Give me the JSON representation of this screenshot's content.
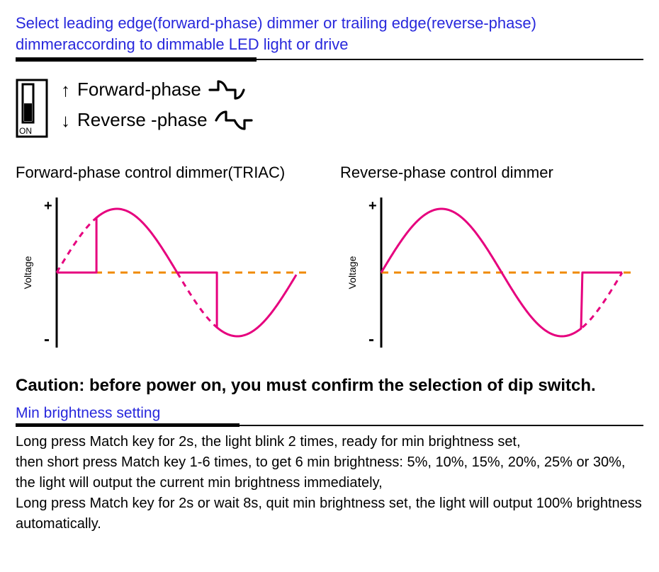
{
  "header": {
    "title_line1": "Select leading edge(forward-phase) dimmer or trailing edge(reverse-phase)",
    "title_line2": "dimmeraccording to dimmable LED light or drive",
    "title_color": "#2828dc",
    "underline_thick_width": 340,
    "underline_color": "#000000"
  },
  "selector": {
    "dip": {
      "on_label": "ON",
      "outline_color": "#000000",
      "slider_fill": "#000000"
    },
    "rows": [
      {
        "arrow": "↑",
        "label": "Forward-phase",
        "wave_type": "forward"
      },
      {
        "arrow": "↓",
        "label": "Reverse -phase",
        "wave_type": "reverse"
      }
    ],
    "label_fontsize": 26,
    "icon_stroke": "#000000",
    "icon_stroke_width": 3.2
  },
  "charts": {
    "axis_label": "Voltage",
    "axis_label_fontsize": 14,
    "plus_label": "+",
    "minus_label": "-",
    "axis_color": "#000000",
    "sine_color": "#e6007e",
    "sine_dash": "8 7",
    "sine_width": 3,
    "zero_line_color": "#f08a00",
    "zero_line_dash": "10 8",
    "zero_line_width": 3,
    "forward": {
      "title": "Forward-phase control dimmer(TRIAC)",
      "cut_fraction_first_half": 0.33,
      "cut_fraction_second_half": 0.33
    },
    "reverse": {
      "title": "Reverse-phase control dimmer",
      "cut_fraction_first_half": 0.0,
      "cut_fraction_second_half_tail": 0.33
    }
  },
  "caution": {
    "text": "Caution: before power on, you must confirm the selection of dip switch.",
    "fontsize": 24,
    "fontweight": 700
  },
  "min_brightness": {
    "heading": "Min brightness setting",
    "heading_color": "#2828dc",
    "underline_thick_width": 316,
    "body_line1": "Long press Match key for 2s, the light blink 2 times, ready for min brightness set,",
    "body_line2": "then short press Match key 1-6 times, to get 6 min brightness: 5%, 10%, 15%, 20%, 25% or 30%,",
    "body_line3": "the light will output the current min brightness immediately,",
    "body_line4": "Long press Match key for 2s or wait 8s, quit min brightness set, the light will output 100% brightness automatically."
  }
}
